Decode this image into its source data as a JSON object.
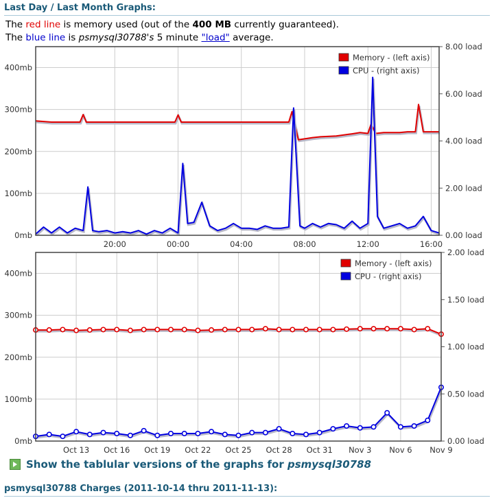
{
  "header": {
    "title": "Last Day / Last Month Graphs:"
  },
  "description": {
    "line1_a": "The ",
    "line1_red": "red line",
    "line1_b": " is memory used (out of the ",
    "line1_bold": "400 MB",
    "line1_c": " currently guaranteed).",
    "line2_a": "The ",
    "line2_blue": "blue line",
    "line2_b": " is ",
    "line2_host": "psmysql30788's",
    "line2_c": " 5 minute ",
    "line2_link": "\"load\"",
    "line2_d": " average."
  },
  "colors": {
    "memory": "#e00000",
    "cpu": "#0000e0",
    "title": "#1a5a78",
    "grid": "#cccccc"
  },
  "footer": {
    "link_prefix": "Show the tablular versions of the graphs for ",
    "link_host": "psmysql30788",
    "link_icon": "play-icon",
    "charges_title": "psmysql30788 Charges (2011-10-14 thru 2011-11-13):"
  },
  "chart_data": [
    {
      "type": "line",
      "xlim": [
        15,
        40.5
      ],
      "x_ticks": [
        {
          "value": 20,
          "label": "20:00"
        },
        {
          "value": 24,
          "label": "00:00"
        },
        {
          "value": 28,
          "label": "04:00"
        },
        {
          "value": 32,
          "label": "08:00"
        },
        {
          "value": 36,
          "label": "12:00"
        },
        {
          "value": 40,
          "label": "16:00"
        }
      ],
      "y_left": {
        "lim": [
          0,
          450
        ],
        "ticks": [
          0,
          100,
          200,
          300,
          400
        ],
        "labels": [
          "0mb",
          "100mb",
          "200mb",
          "300mb",
          "400mb"
        ]
      },
      "y_right": {
        "lim": [
          0,
          8.0
        ],
        "ticks": [
          0,
          2,
          4,
          6,
          8
        ],
        "labels": [
          "0.00 load",
          "2.00 load",
          "4.00 load",
          "6.00 load",
          "8.00 load"
        ]
      },
      "legend": {
        "position": "top-right",
        "entries": [
          "Memory - (left axis)",
          "CPU - (right axis)"
        ]
      },
      "markers": false,
      "series": [
        {
          "name": "Memory - (left axis)",
          "axis": "left",
          "x": [
            15,
            16,
            17,
            17.8,
            18,
            18.2,
            19,
            20,
            21,
            22,
            23,
            23.8,
            24,
            24.2,
            25,
            26,
            27,
            28,
            29,
            30,
            31,
            31.2,
            31.6,
            32,
            32.5,
            33,
            34,
            35,
            35.5,
            36,
            36.2,
            36.5,
            37,
            38,
            38.5,
            39,
            39.2,
            39.5,
            40,
            40.5
          ],
          "y": [
            273,
            270,
            270,
            270,
            288,
            270,
            270,
            270,
            270,
            270,
            270,
            270,
            287,
            270,
            270,
            270,
            270,
            270,
            270,
            270,
            270,
            295,
            228,
            230,
            233,
            235,
            237,
            242,
            245,
            243,
            265,
            243,
            245,
            245,
            247,
            247,
            312,
            247,
            247,
            247
          ]
        },
        {
          "name": "CPU - (right axis)",
          "axis": "right",
          "x": [
            15,
            15.5,
            16,
            16.5,
            17,
            17.5,
            18,
            18.3,
            18.6,
            19,
            19.5,
            20,
            20.5,
            21,
            21.5,
            22,
            22.5,
            23,
            23.5,
            24,
            24.3,
            24.6,
            25,
            25.5,
            26,
            26.5,
            27,
            27.5,
            28,
            28.5,
            29,
            29.5,
            30,
            30.5,
            31,
            31.3,
            31.7,
            32,
            32.5,
            33,
            33.5,
            34,
            34.5,
            35,
            35.5,
            36,
            36.3,
            36.6,
            37,
            37.5,
            38,
            38.5,
            39,
            39.5,
            40,
            40.5
          ],
          "y": [
            0.05,
            0.35,
            0.1,
            0.35,
            0.1,
            0.3,
            0.2,
            2.05,
            0.2,
            0.15,
            0.2,
            0.1,
            0.15,
            0.1,
            0.2,
            0.05,
            0.2,
            0.1,
            0.3,
            0.1,
            3.05,
            0.5,
            0.55,
            1.4,
            0.4,
            0.2,
            0.3,
            0.5,
            0.3,
            0.3,
            0.25,
            0.4,
            0.3,
            0.3,
            0.35,
            5.4,
            0.4,
            0.3,
            0.5,
            0.35,
            0.5,
            0.45,
            0.3,
            0.6,
            0.3,
            0.5,
            6.7,
            0.8,
            0.3,
            0.4,
            0.5,
            0.3,
            0.4,
            0.8,
            0.2,
            0.1
          ]
        }
      ]
    },
    {
      "type": "line",
      "xlim": [
        0,
        30
      ],
      "x_ticks": [
        {
          "value": 3,
          "label": "Oct 13"
        },
        {
          "value": 6,
          "label": "Oct 16"
        },
        {
          "value": 9,
          "label": "Oct 19"
        },
        {
          "value": 12,
          "label": "Oct 22"
        },
        {
          "value": 15,
          "label": "Oct 25"
        },
        {
          "value": 18,
          "label": "Oct 28"
        },
        {
          "value": 21,
          "label": "Oct 31"
        },
        {
          "value": 24,
          "label": "Nov 3"
        },
        {
          "value": 27,
          "label": "Nov 6"
        },
        {
          "value": 30,
          "label": "Nov 9"
        }
      ],
      "y_left": {
        "lim": [
          0,
          450
        ],
        "ticks": [
          0,
          100,
          200,
          300,
          400
        ],
        "labels": [
          "0mb",
          "100mb",
          "200mb",
          "300mb",
          "400mb"
        ]
      },
      "y_right": {
        "lim": [
          0,
          2.0
        ],
        "ticks": [
          0,
          0.5,
          1.0,
          1.5,
          2.0
        ],
        "labels": [
          "0.00 load",
          "0.50 load",
          "1.00 load",
          "1.50 load",
          "2.00 load"
        ]
      },
      "legend": {
        "position": "top-right",
        "entries": [
          "Memory - (left axis)",
          "CPU - (right axis)"
        ]
      },
      "markers": true,
      "series": [
        {
          "name": "Memory - (left axis)",
          "axis": "left",
          "x": [
            0,
            1,
            2,
            3,
            4,
            5,
            6,
            7,
            8,
            9,
            10,
            11,
            12,
            13,
            14,
            15,
            16,
            17,
            18,
            19,
            20,
            21,
            22,
            23,
            24,
            25,
            26,
            27,
            28,
            29,
            30
          ],
          "y": [
            265,
            265,
            266,
            264,
            265,
            266,
            266,
            264,
            266,
            266,
            266,
            266,
            264,
            265,
            266,
            266,
            266,
            268,
            266,
            266,
            266,
            266,
            266,
            267,
            268,
            268,
            268,
            268,
            266,
            268,
            255
          ]
        },
        {
          "name": "CPU - (right axis)",
          "axis": "right",
          "x": [
            0,
            1,
            2,
            3,
            4,
            5,
            6,
            7,
            8,
            9,
            10,
            11,
            12,
            13,
            14,
            15,
            16,
            17,
            18,
            19,
            20,
            21,
            22,
            23,
            24,
            25,
            26,
            27,
            28,
            29,
            30
          ],
          "y": [
            0.05,
            0.07,
            0.05,
            0.1,
            0.07,
            0.09,
            0.08,
            0.06,
            0.11,
            0.06,
            0.08,
            0.08,
            0.08,
            0.1,
            0.07,
            0.06,
            0.09,
            0.09,
            0.13,
            0.08,
            0.07,
            0.09,
            0.13,
            0.16,
            0.14,
            0.15,
            0.3,
            0.15,
            0.16,
            0.22,
            0.57
          ]
        }
      ]
    }
  ]
}
